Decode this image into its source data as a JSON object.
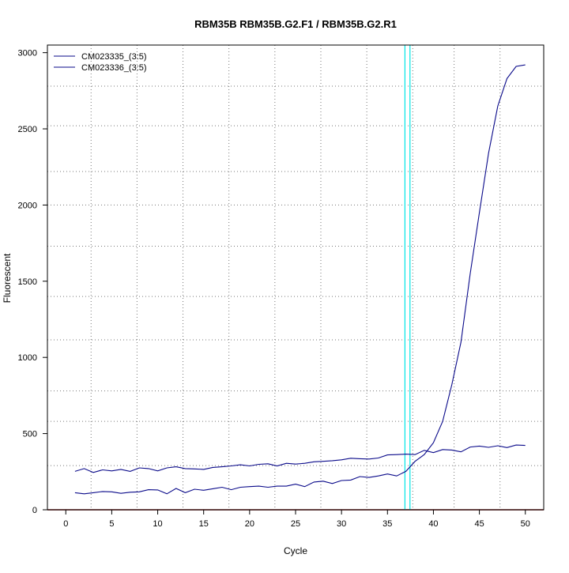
{
  "chart_data": {
    "type": "line",
    "title": "RBM35B  RBM35B.G2.F1 / RBM35B.G2.R1",
    "xlabel": "Cycle",
    "ylabel": "Fluorescent",
    "xlim": [
      -2,
      52
    ],
    "ylim": [
      0,
      3050
    ],
    "xticks": [
      0,
      5,
      10,
      15,
      20,
      25,
      30,
      35,
      40,
      45,
      50
    ],
    "yticks": [
      0,
      500,
      1000,
      1500,
      2000,
      2500,
      3000
    ],
    "x_gridlines": [
      2.75,
      7.75,
      12.75,
      17.75,
      22.75,
      27.75,
      32.75,
      37.75,
      42.25,
      47.25
    ],
    "y_gridlines": [
      290,
      580,
      780,
      1115,
      1400,
      1730,
      2000,
      2220,
      2520,
      2780
    ],
    "grid": true,
    "legend_position": "top-left",
    "threshold_lines": [
      {
        "x": 36.9,
        "color": "#00e5e5"
      },
      {
        "x": 37.45,
        "color": "#00e5e5"
      }
    ],
    "baseline_color": "#8b0000",
    "series": [
      {
        "name": "CM023335_(3:5)",
        "color": "#0a0a8a",
        "x": [
          1,
          2,
          3,
          4,
          5,
          6,
          7,
          8,
          9,
          10,
          11,
          12,
          13,
          14,
          15,
          16,
          17,
          18,
          19,
          20,
          21,
          22,
          23,
          24,
          25,
          26,
          27,
          28,
          29,
          30,
          31,
          32,
          33,
          34,
          35,
          36,
          37,
          38,
          39,
          40,
          41,
          42,
          43,
          44,
          45,
          46,
          47,
          48,
          49,
          50
        ],
        "values": [
          252,
          270,
          245,
          262,
          255,
          265,
          252,
          275,
          270,
          255,
          275,
          282,
          270,
          268,
          265,
          278,
          282,
          288,
          295,
          288,
          298,
          302,
          288,
          305,
          300,
          305,
          315,
          318,
          322,
          328,
          338,
          335,
          333,
          340,
          360,
          362,
          365,
          362,
          390,
          375,
          395,
          392,
          380,
          412,
          418,
          410,
          420,
          408,
          425,
          422
        ]
      },
      {
        "name": "CM023336_(3:5)",
        "color": "#0a0a8a",
        "x": [
          1,
          2,
          3,
          4,
          5,
          6,
          7,
          8,
          9,
          10,
          11,
          12,
          13,
          14,
          15,
          16,
          17,
          18,
          19,
          20,
          21,
          22,
          23,
          24,
          25,
          26,
          27,
          28,
          29,
          30,
          31,
          32,
          33,
          34,
          35,
          36,
          37,
          38,
          39,
          40,
          41,
          42,
          43,
          44,
          45,
          46,
          47,
          48,
          49,
          50
        ],
        "values": [
          112,
          105,
          112,
          120,
          118,
          108,
          115,
          118,
          132,
          130,
          105,
          140,
          112,
          135,
          128,
          138,
          148,
          132,
          148,
          152,
          155,
          148,
          155,
          155,
          168,
          152,
          182,
          188,
          172,
          192,
          195,
          218,
          212,
          222,
          235,
          222,
          252,
          318,
          362,
          440,
          580,
          820,
          1100,
          1550,
          1950,
          2340,
          2650,
          2830,
          2910,
          2920
        ]
      }
    ]
  }
}
